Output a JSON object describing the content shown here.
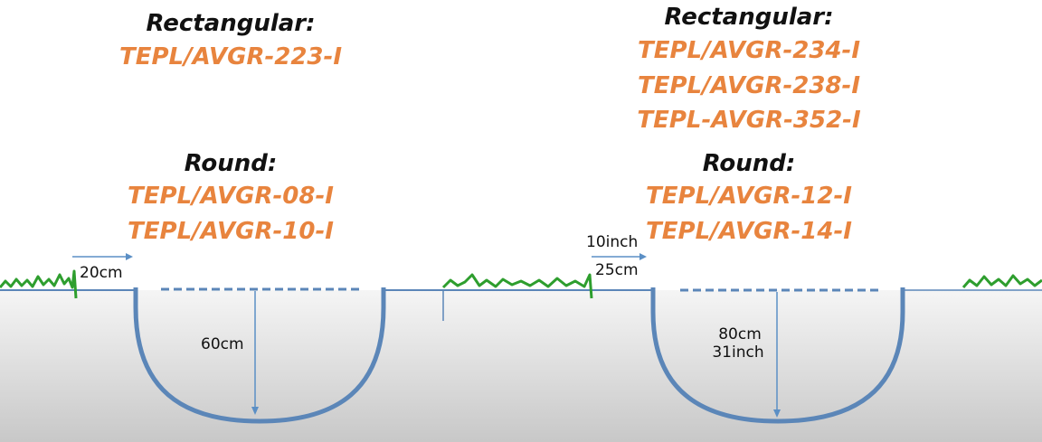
{
  "colors": {
    "ground_top": "#f5f5f5",
    "ground_bottom": "#c8c8c8",
    "pipe": "#5b86b8",
    "arrow": "#5b8fc5",
    "grass": "#2e9e2e",
    "heading": "#111111",
    "code": "#e8843e"
  },
  "left": {
    "rectangular_heading": "Rectangular:",
    "rectangular_codes": [
      "TEPL/AVGR-223-I"
    ],
    "round_heading": "Round:",
    "round_codes": [
      "TEPL/AVGR-08-I",
      "TEPL/AVGR-10-I"
    ],
    "offset_label": "20cm",
    "depth_label": "60cm"
  },
  "right": {
    "rectangular_heading": "Rectangular:",
    "rectangular_codes": [
      "TEPL/AVGR-234-I",
      "TEPL/AVGR-238-I",
      "TEPL-AVGR-352-I"
    ],
    "round_heading": "Round:",
    "round_codes": [
      "TEPL/AVGR-12-I",
      "TEPL/AVGR-14-I"
    ],
    "offset_label_inch": "10inch",
    "offset_label_cm": "25cm",
    "depth_label_cm": "80cm",
    "depth_label_inch": "31inch"
  }
}
